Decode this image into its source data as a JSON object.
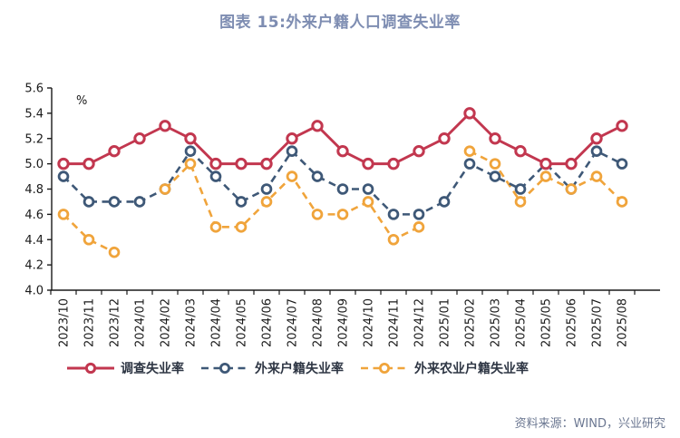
{
  "title": "图表 15:外来户籍人口调查失业率",
  "footer": {
    "source": "资料来源：WIND，兴业研究"
  },
  "colors": {
    "red": "#C2374F",
    "navy": "#3E5877",
    "orange": "#F0A43B",
    "title_text": "#7E8DB2",
    "footer_text": "#6B7791",
    "axis": "#1a1a1a"
  },
  "chart_data": {
    "type": "line",
    "title": "图表 15:外来户籍人口调查失业率",
    "unit_label": "%",
    "xlabel": "",
    "ylabel": "",
    "ylim": [
      4.0,
      5.6
    ],
    "ytick_step": 0.2,
    "ytick_labels": [
      "4.0",
      "4.2",
      "4.4",
      "4.6",
      "4.8",
      "5.0",
      "5.2",
      "5.4",
      "5.6"
    ],
    "grid": false,
    "legend_position": "bottom",
    "categories": [
      "2023/10",
      "2023/11",
      "2023/12",
      "2024/01",
      "2024/02",
      "2024/03",
      "2024/04",
      "2024/05",
      "2024/06",
      "2024/07",
      "2024/08",
      "2024/09",
      "2024/10",
      "2024/11",
      "2024/12",
      "2025/01",
      "2025/02",
      "2025/03",
      "2025/04",
      "2025/05",
      "2025/06",
      "2025/07",
      "2025/08"
    ],
    "series": [
      {
        "name": "调查失业率",
        "color_key": "red",
        "line_style": "solid",
        "marker": "open-circle",
        "values": [
          5.0,
          5.0,
          5.1,
          5.2,
          5.3,
          5.2,
          5.0,
          5.0,
          5.0,
          5.2,
          5.3,
          5.1,
          5.0,
          5.0,
          5.1,
          5.2,
          5.4,
          5.2,
          5.1,
          5.0,
          5.0,
          5.2,
          5.3
        ]
      },
      {
        "name": "外来户籍失业率",
        "color_key": "navy",
        "line_style": "dashed",
        "marker": "open-circle",
        "values": [
          4.9,
          4.7,
          4.7,
          4.7,
          4.8,
          5.1,
          4.9,
          4.7,
          4.8,
          5.1,
          4.9,
          4.8,
          4.8,
          4.6,
          4.6,
          4.7,
          5.0,
          4.9,
          4.8,
          5.0,
          4.8,
          5.1,
          5.0
        ]
      },
      {
        "name": "外来农业户籍失业率",
        "color_key": "orange",
        "line_style": "dashed",
        "marker": "open-circle",
        "values": [
          4.6,
          4.4,
          4.3,
          null,
          4.8,
          5.0,
          4.5,
          4.5,
          4.7,
          4.9,
          4.6,
          4.6,
          4.7,
          4.4,
          4.5,
          null,
          5.1,
          5.0,
          4.7,
          4.9,
          4.8,
          4.9,
          4.7
        ]
      }
    ]
  }
}
